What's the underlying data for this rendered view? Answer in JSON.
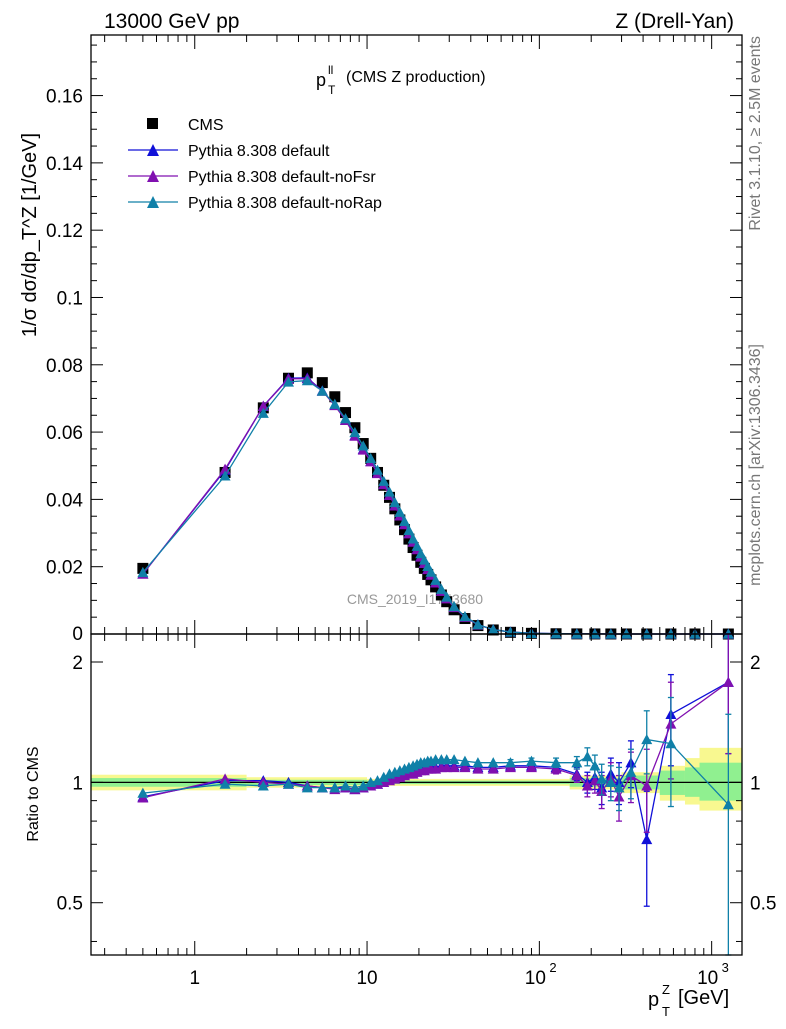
{
  "header": {
    "left": "13000 GeV pp",
    "right": "Z (Drell-Yan)"
  },
  "side_labels": {
    "rivet": "Rivet 3.1.10, ≥ 2.5M events",
    "mcplots": "mcplots.cern.ch [arXiv:1306.3436]"
  },
  "watermark": "CMS_2019_I1753680",
  "colors": {
    "cms": "#000000",
    "default": "#1010d8",
    "noFsr": "#8010b0",
    "noRap": "#1080a8",
    "band_inner": "#90f090",
    "band_outer": "#f8f890"
  },
  "chart_data": [
    {
      "type": "scatter",
      "panel": "main",
      "title_main": "p",
      "title_sup": "ll",
      "title_sub": "T",
      "title_rest": "(CMS Z production)",
      "ylabel": "1/σ dσ/dp_T^Z [1/GeV]",
      "xscale": "log",
      "xlim": [
        0.25,
        1500
      ],
      "ylim": [
        0,
        0.178
      ],
      "yticks": [
        "0.02",
        "0.04",
        "0.06",
        "0.08",
        "0.1",
        "0.12",
        "0.14",
        "0.16"
      ],
      "yticks_bottom": "0",
      "legend": {
        "placement": "top-left",
        "entries": [
          "CMS",
          "Pythia 8.308 default",
          "Pythia 8.308 default-noFsr",
          "Pythia 8.308 default-noRap"
        ]
      },
      "x": [
        0.5,
        1.5,
        2.5,
        3.5,
        4.5,
        5.5,
        6.5,
        7.5,
        8.5,
        9.5,
        10.5,
        11.5,
        12.5,
        13.5,
        14.5,
        15.5,
        16.5,
        17.5,
        18.5,
        19.5,
        20.5,
        21.5,
        22.5,
        23.5,
        25,
        27,
        29,
        32,
        37,
        44,
        54,
        68,
        90,
        125,
        165,
        210,
        260,
        320,
        420,
        580,
        800,
        1250
      ],
      "series": [
        {
          "name": "CMS",
          "key": "cms",
          "values": [
            0.0195,
            0.048,
            0.0672,
            0.076,
            0.0776,
            0.0747,
            0.0705,
            0.0658,
            0.0613,
            0.0566,
            0.0522,
            0.048,
            0.0442,
            0.0406,
            0.0372,
            0.0339,
            0.031,
            0.0282,
            0.0257,
            0.0234,
            0.0213,
            0.0195,
            0.0177,
            0.0161,
            0.014,
            0.0116,
            0.0096,
            0.0072,
            0.0046,
            0.0025,
            0.0012,
            0.0005,
            0.0002,
            7e-05,
            3e-05,
            2e-05,
            1e-05,
            8e-06,
            4e-06,
            2e-06,
            1e-06,
            5e-07
          ]
        },
        {
          "name": "Pythia 8.308 default",
          "key": "default",
          "values": [
            0.0179,
            0.0487,
            0.0677,
            0.076,
            0.0761,
            0.0723,
            0.068,
            0.0636,
            0.059,
            0.0549,
            0.0513,
            0.0478,
            0.0445,
            0.0413,
            0.0382,
            0.0352,
            0.0326,
            0.0299,
            0.0274,
            0.0252,
            0.023,
            0.0211,
            0.0193,
            0.0176,
            0.0153,
            0.0128,
            0.0106,
            0.008,
            0.0051,
            0.0028,
            0.0013,
            0.0006,
            0.0002,
            8e-05,
            3e-05,
            2e-05,
            1e-05,
            8e-06,
            3e-06,
            3e-06,
            1e-06,
            9e-07
          ]
        },
        {
          "name": "Pythia 8.308 default-noFsr",
          "key": "noFsr",
          "values": [
            0.0178,
            0.049,
            0.0677,
            0.0758,
            0.0759,
            0.0722,
            0.0679,
            0.0635,
            0.0588,
            0.0547,
            0.0512,
            0.0477,
            0.0444,
            0.0412,
            0.0381,
            0.0351,
            0.0325,
            0.0298,
            0.0273,
            0.0251,
            0.0229,
            0.021,
            0.0192,
            0.0175,
            0.0152,
            0.0127,
            0.0105,
            0.0079,
            0.005,
            0.0027,
            0.0013,
            0.0006,
            0.0002,
            8e-05,
            3e-05,
            2e-05,
            1e-05,
            7e-06,
            4e-06,
            3e-06,
            1e-06,
            9e-07
          ]
        },
        {
          "name": "Pythia 8.308 default-noRap",
          "key": "noRap",
          "values": [
            0.0183,
            0.047,
            0.0656,
            0.0749,
            0.0753,
            0.0722,
            0.0683,
            0.064,
            0.0599,
            0.0559,
            0.0522,
            0.0487,
            0.0454,
            0.0422,
            0.0391,
            0.0362,
            0.0335,
            0.0308,
            0.0283,
            0.0261,
            0.0239,
            0.022,
            0.0201,
            0.0184,
            0.016,
            0.0133,
            0.011,
            0.0082,
            0.0052,
            0.0028,
            0.0013,
            0.0006,
            0.0002,
            8e-05,
            3e-05,
            2e-05,
            1e-05,
            8e-06,
            5e-06,
            3e-06,
            1e-06,
            5e-07
          ]
        }
      ]
    },
    {
      "type": "line",
      "panel": "ratio",
      "ylabel": "Ratio to CMS",
      "xlabel_main": "p",
      "xlabel_sup": "Z",
      "xlabel_sub": "T",
      "xlabel_unit": "[GeV]",
      "xscale": "log",
      "xlim": [
        0.25,
        1500
      ],
      "xticks": [
        {
          "value": 1,
          "label": "1",
          "exp": ""
        },
        {
          "value": 10,
          "label": "10",
          "exp": ""
        },
        {
          "value": 100,
          "label": "10",
          "exp": "2"
        },
        {
          "value": 1000,
          "label": "10",
          "exp": "3"
        }
      ],
      "ylim": [
        0.37,
        2.35
      ],
      "yticks": [
        {
          "value": 0.5,
          "label": "0.5"
        },
        {
          "value": 1,
          "label": "1"
        },
        {
          "value": 2,
          "label": "2"
        }
      ],
      "x": [
        0.5,
        1.5,
        2.5,
        3.5,
        4.5,
        5.5,
        6.5,
        7.5,
        8.5,
        9.5,
        10.5,
        11.5,
        12.5,
        13.5,
        14.5,
        15.5,
        16.5,
        17.5,
        18.5,
        19.5,
        20.5,
        21.5,
        22.5,
        23.5,
        25,
        27,
        29,
        32,
        37,
        44,
        54,
        68,
        90,
        125,
        165,
        190,
        210,
        230,
        260,
        290,
        340,
        420,
        580,
        1250
      ],
      "bands": [
        {
          "xmin": 0.25,
          "xmax": 2,
          "inner": [
            0.975,
            1.025
          ],
          "outer": [
            0.955,
            1.045
          ]
        },
        {
          "xmin": 2,
          "xmax": 10,
          "inner": [
            0.985,
            1.015
          ],
          "outer": [
            0.97,
            1.03
          ]
        },
        {
          "xmin": 10,
          "xmax": 150,
          "inner": [
            0.99,
            1.01
          ],
          "outer": [
            0.98,
            1.02
          ]
        },
        {
          "xmin": 150,
          "xmax": 300,
          "inner": [
            0.975,
            1.025
          ],
          "outer": [
            0.96,
            1.04
          ]
        },
        {
          "xmin": 300,
          "xmax": 500,
          "inner": [
            0.96,
            1.04
          ],
          "outer": [
            0.94,
            1.06
          ]
        },
        {
          "xmin": 500,
          "xmax": 700,
          "inner": [
            0.93,
            1.07
          ],
          "outer": [
            0.9,
            1.1
          ]
        },
        {
          "xmin": 700,
          "xmax": 850,
          "inner": [
            0.92,
            1.09
          ],
          "outer": [
            0.88,
            1.15
          ]
        },
        {
          "xmin": 850,
          "xmax": 1500,
          "inner": [
            0.9,
            1.12
          ],
          "outer": [
            0.85,
            1.22
          ]
        }
      ],
      "series": [
        {
          "name": "Pythia 8.308 default",
          "key": "default",
          "values": [
            0.92,
            1.01,
            1.01,
            1.0,
            0.98,
            0.97,
            0.97,
            0.97,
            0.96,
            0.97,
            0.98,
            0.99,
            1.01,
            1.02,
            1.03,
            1.04,
            1.05,
            1.06,
            1.06,
            1.07,
            1.08,
            1.08,
            1.09,
            1.09,
            1.09,
            1.1,
            1.1,
            1.1,
            1.1,
            1.09,
            1.09,
            1.1,
            1.1,
            1.09,
            1.05,
            1.0,
            1.03,
            0.97,
            1.05,
            1.0,
            1.12,
            0.72,
            1.48,
            1.78
          ],
          "errors": [
            0.01,
            0.01,
            0.01,
            0.01,
            0.01,
            0.01,
            0.01,
            0.01,
            0.01,
            0.01,
            0.01,
            0.01,
            0.01,
            0.01,
            0.01,
            0.01,
            0.01,
            0.01,
            0.01,
            0.01,
            0.01,
            0.01,
            0.01,
            0.01,
            0.01,
            0.01,
            0.01,
            0.01,
            0.01,
            0.01,
            0.01,
            0.02,
            0.02,
            0.03,
            0.04,
            0.06,
            0.07,
            0.09,
            0.1,
            0.12,
            0.15,
            0.23,
            0.38,
            0.6
          ]
        },
        {
          "name": "Pythia 8.308 default-noFsr",
          "key": "noFsr",
          "values": [
            0.915,
            1.02,
            1.0,
            0.99,
            0.98,
            0.97,
            0.96,
            0.97,
            0.96,
            0.97,
            0.98,
            0.99,
            1.0,
            1.01,
            1.02,
            1.03,
            1.04,
            1.05,
            1.05,
            1.06,
            1.07,
            1.07,
            1.08,
            1.08,
            1.08,
            1.09,
            1.09,
            1.09,
            1.09,
            1.08,
            1.08,
            1.09,
            1.09,
            1.08,
            1.04,
            0.98,
            1.01,
            0.95,
            1.02,
            0.92,
            1.04,
            0.98,
            1.4,
            1.78
          ],
          "errors": [
            0.01,
            0.01,
            0.01,
            0.01,
            0.01,
            0.01,
            0.01,
            0.01,
            0.01,
            0.01,
            0.01,
            0.01,
            0.01,
            0.01,
            0.01,
            0.01,
            0.01,
            0.01,
            0.01,
            0.01,
            0.01,
            0.01,
            0.01,
            0.01,
            0.01,
            0.01,
            0.01,
            0.01,
            0.01,
            0.01,
            0.01,
            0.02,
            0.02,
            0.03,
            0.04,
            0.06,
            0.07,
            0.09,
            0.1,
            0.12,
            0.15,
            0.23,
            0.38,
            0.6
          ]
        },
        {
          "name": "Pythia 8.308 default-noRap",
          "key": "noRap",
          "values": [
            0.94,
            0.99,
            0.98,
            0.99,
            0.97,
            0.97,
            0.97,
            0.98,
            0.97,
            0.98,
            1.0,
            1.01,
            1.03,
            1.05,
            1.06,
            1.07,
            1.08,
            1.09,
            1.1,
            1.11,
            1.12,
            1.12,
            1.13,
            1.13,
            1.14,
            1.14,
            1.14,
            1.14,
            1.13,
            1.12,
            1.12,
            1.12,
            1.13,
            1.12,
            1.12,
            1.16,
            1.1,
            1.02,
            1.0,
            0.97,
            1.06,
            1.28,
            1.25,
            0.88
          ],
          "errors": [
            0.01,
            0.01,
            0.01,
            0.01,
            0.01,
            0.01,
            0.01,
            0.01,
            0.01,
            0.01,
            0.01,
            0.01,
            0.01,
            0.01,
            0.01,
            0.01,
            0.01,
            0.01,
            0.01,
            0.01,
            0.01,
            0.01,
            0.01,
            0.01,
            0.01,
            0.01,
            0.01,
            0.01,
            0.01,
            0.01,
            0.01,
            0.02,
            0.02,
            0.03,
            0.04,
            0.06,
            0.07,
            0.09,
            0.1,
            0.12,
            0.15,
            0.23,
            0.38,
            0.6
          ]
        }
      ]
    }
  ]
}
